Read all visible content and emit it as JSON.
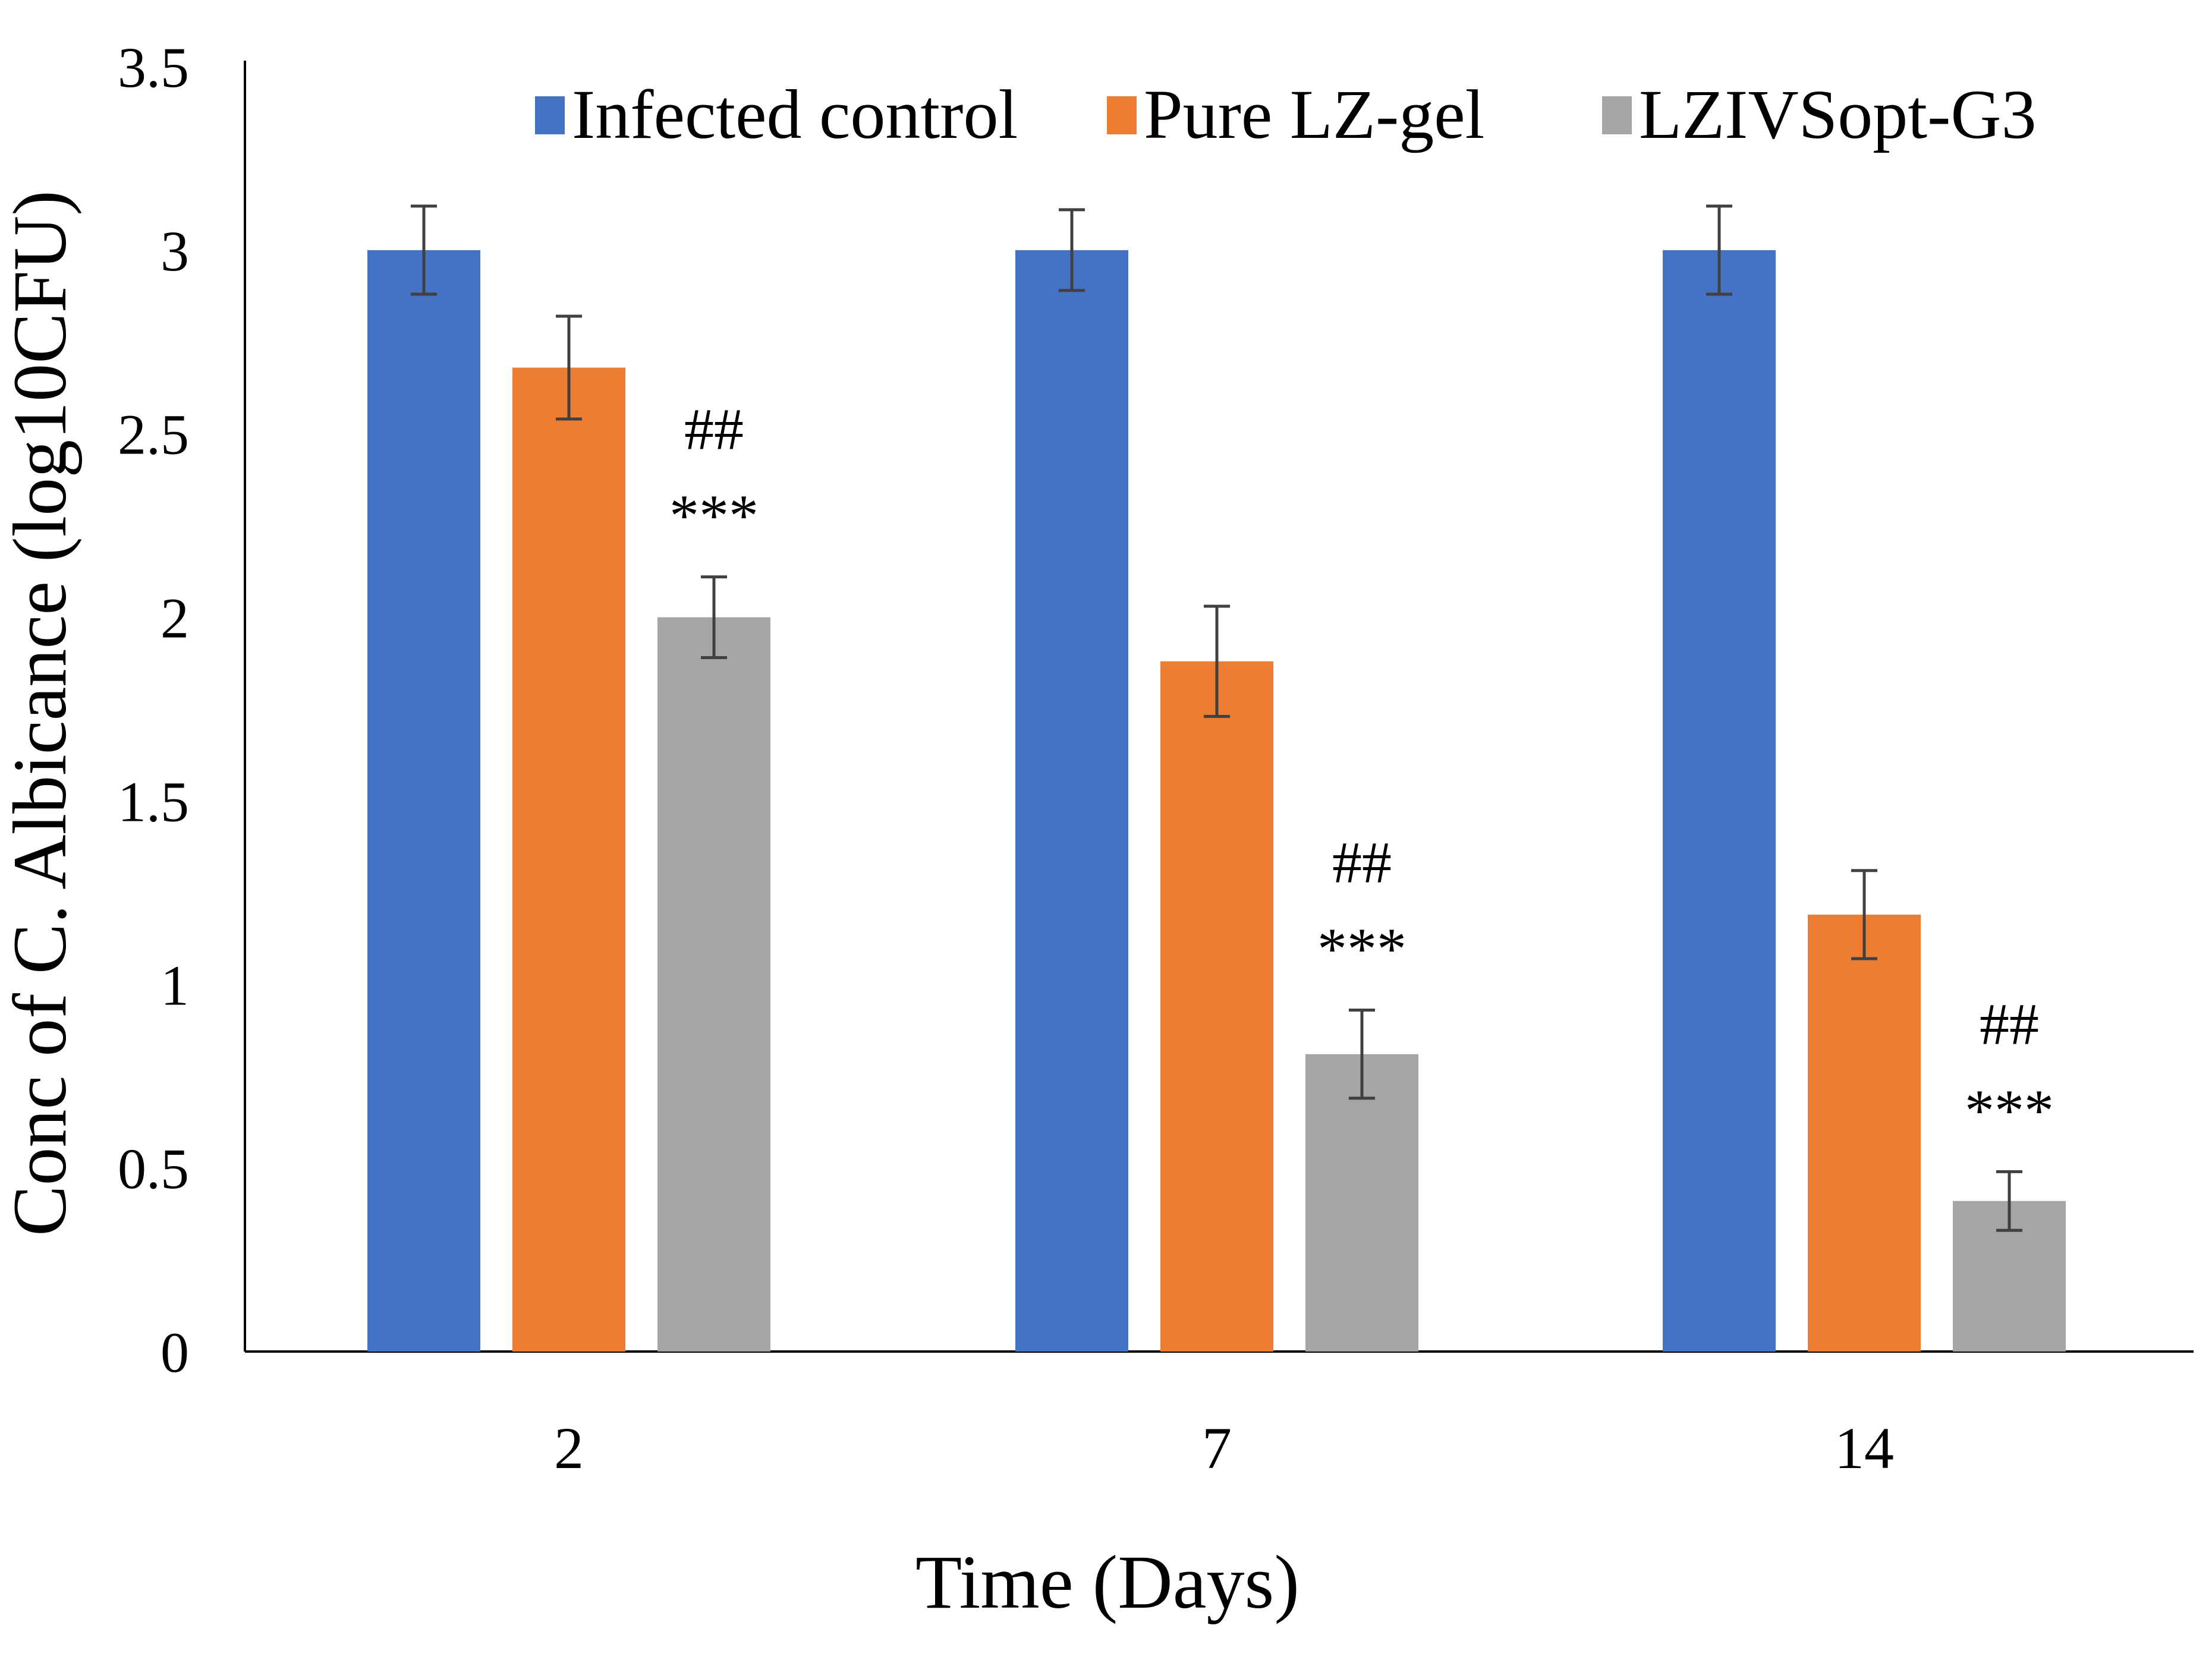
{
  "chart_data": {
    "type": "bar",
    "title": "",
    "xlabel": "Time (Days)",
    "ylabel": "Conc of C. Albicance (log10CFU)",
    "categories": [
      "2",
      "7",
      "14"
    ],
    "ylim": [
      0,
      3.5
    ],
    "yticks": [
      "0",
      "0.5",
      "1",
      "1.5",
      "2",
      "2.5",
      "3",
      "3.5"
    ],
    "grid": false,
    "legend_position": "top",
    "series": [
      {
        "name": "Infected control",
        "color": "#4472C4",
        "values": [
          3.0,
          3.0,
          3.0
        ],
        "errors": [
          0.12,
          0.11,
          0.12
        ],
        "annotations": [
          [],
          [],
          []
        ]
      },
      {
        "name": "Pure LZ-gel",
        "color": "#ED7D31",
        "values": [
          2.68,
          1.88,
          1.19
        ],
        "errors": [
          0.14,
          0.15,
          0.12
        ],
        "annotations": [
          [],
          [],
          []
        ]
      },
      {
        "name": "LZIVSopt-G3",
        "color": "#A5A5A5",
        "values": [
          2.0,
          0.81,
          0.41
        ],
        "errors": [
          0.11,
          0.12,
          0.08
        ],
        "annotations": [
          [
            "***",
            "##"
          ],
          [
            "***",
            "##"
          ],
          [
            "***",
            "##"
          ]
        ]
      }
    ]
  }
}
